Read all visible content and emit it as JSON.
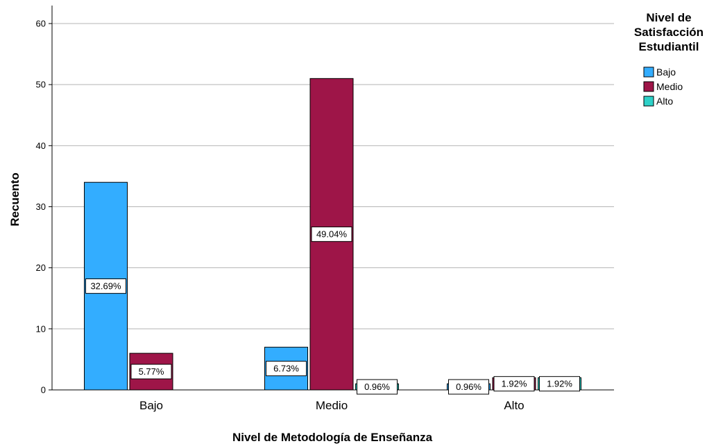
{
  "chart_data": {
    "type": "bar",
    "categories": [
      "Bajo",
      "Medio",
      "Alto"
    ],
    "xlabel": "Nivel de Metodología de Enseñanza",
    "ylabel": "Recuento",
    "ylim": [
      0,
      63
    ],
    "yticks": [
      0,
      10,
      20,
      30,
      40,
      50,
      60
    ],
    "grid": true,
    "legend": {
      "title_lines": [
        "Nivel de",
        "Satisfacción",
        "Estudiantil"
      ],
      "placement": "top-right"
    },
    "series": [
      {
        "name": "Bajo",
        "color": "#33adff",
        "values": [
          34,
          7,
          1
        ],
        "labels": [
          "32.69%",
          "6.73%",
          "0.96%"
        ]
      },
      {
        "name": "Medio",
        "color": "#9e1548",
        "values": [
          6,
          51,
          2
        ],
        "labels": [
          "5.77%",
          "49.04%",
          "1.92%"
        ]
      },
      {
        "name": "Alto",
        "color": "#2ed1c8",
        "values": [
          0,
          1,
          2
        ],
        "labels": [
          "",
          "0.96%",
          "1.92%"
        ]
      }
    ]
  }
}
